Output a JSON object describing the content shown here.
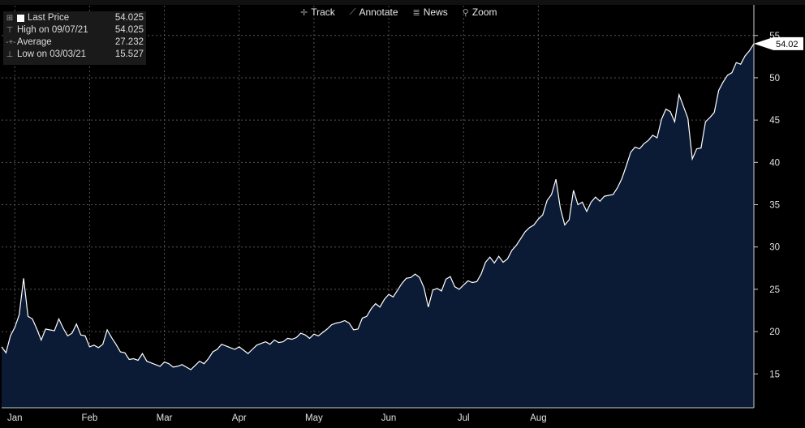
{
  "toolbar": {
    "track": "Track",
    "annotate": "Annotate",
    "news": "News",
    "zoom": "Zoom"
  },
  "legend": {
    "last_price_label": "Last Price",
    "last_price_value": "54.025",
    "high_label": "High on 09/07/21",
    "high_value": "54.025",
    "average_label": "Average",
    "average_value": "27.232",
    "low_label": "Low on 03/03/21",
    "low_value": "15.527"
  },
  "price_tag": "54.02",
  "colors": {
    "fill": "#0b1b35",
    "line": "#ffffff",
    "grid": "#555555",
    "background": "#000000"
  },
  "chart_data": {
    "type": "area",
    "x_unit": "trading-day index (2021)",
    "x_tick_labels": [
      "Jan",
      "Feb",
      "Mar",
      "Apr",
      "May",
      "Jun",
      "Jul",
      "Aug"
    ],
    "x_tick_positions": [
      3,
      20,
      37,
      54,
      71,
      88,
      105,
      122
    ],
    "y_ticks": [
      15,
      20,
      25,
      30,
      35,
      40,
      45,
      50,
      55
    ],
    "ylim": [
      11,
      59
    ],
    "grid": true,
    "series": [
      {
        "values": [
          18.2,
          17.5,
          19.5,
          20.5,
          22.0,
          26.3,
          21.8,
          21.5,
          20.3,
          19.0,
          20.3,
          20.2,
          20.1,
          21.5,
          20.4,
          19.5,
          19.8,
          20.9,
          19.6,
          19.5,
          18.2,
          18.4,
          18.1,
          18.5,
          20.2,
          19.3,
          18.5,
          17.6,
          17.5,
          16.7,
          16.8,
          16.6,
          17.4,
          16.5,
          16.3,
          16.1,
          15.9,
          16.4,
          16.2,
          15.8,
          15.9,
          16.1,
          15.8,
          15.5,
          16.0,
          16.5,
          16.2,
          16.8,
          17.6,
          17.9,
          18.5,
          18.3,
          18.1,
          17.9,
          18.2,
          17.8,
          17.4,
          17.9,
          18.4,
          18.6,
          18.8,
          18.5,
          19.0,
          18.7,
          18.8,
          19.2,
          19.1,
          19.3,
          19.8,
          19.6,
          19.2,
          19.7,
          19.5,
          19.9,
          20.3,
          20.8,
          21.0,
          21.1,
          21.3,
          21.0,
          20.2,
          20.3,
          21.6,
          21.8,
          22.7,
          23.3,
          22.9,
          23.8,
          24.4,
          24.1,
          24.9,
          25.7,
          26.3,
          26.4,
          26.8,
          26.4,
          25.2,
          22.9,
          24.9,
          25.1,
          24.8,
          26.2,
          26.5,
          25.3,
          25.0,
          25.5,
          26.0,
          25.8,
          25.9,
          26.8,
          28.2,
          28.8,
          28.1,
          28.9,
          28.2,
          28.6,
          29.6,
          30.2,
          31.0,
          31.8,
          32.3,
          32.6,
          33.3,
          33.8,
          35.5,
          36.2,
          38.0,
          34.6,
          32.6,
          33.2,
          36.7,
          35.0,
          35.3,
          34.2,
          35.3,
          35.9,
          35.4,
          36.0,
          36.1,
          36.2,
          37.0,
          38.1,
          39.6,
          41.2,
          41.8,
          41.6,
          42.2,
          42.6,
          43.2,
          42.9,
          45.1,
          46.3,
          46.0,
          44.8,
          48.0,
          46.6,
          45.2,
          40.4,
          41.6,
          41.7,
          44.8,
          45.3,
          45.9,
          48.5,
          49.5,
          50.3,
          50.6,
          51.8,
          51.6,
          52.6,
          53.2,
          54.025
        ]
      }
    ]
  }
}
